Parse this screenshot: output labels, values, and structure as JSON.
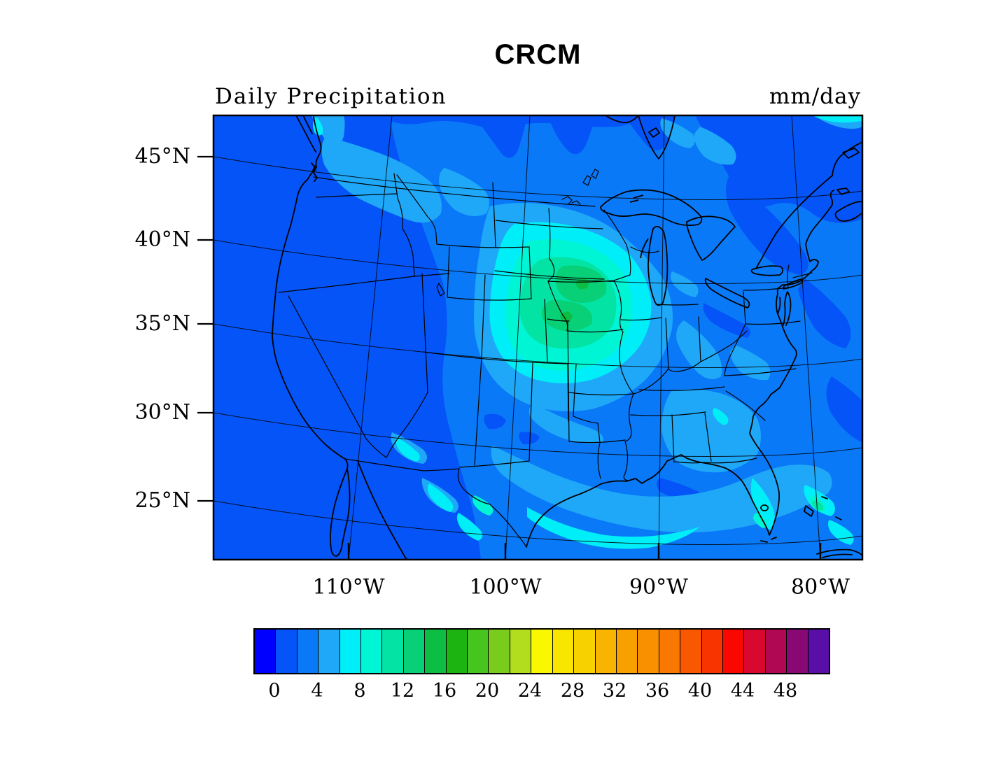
{
  "title": "CRCM",
  "subtitle": "Daily Precipitation",
  "units": "mm/day",
  "axes": {
    "lat_ticks": [
      "45°N",
      "40°N",
      "35°N",
      "30°N",
      "25°N"
    ],
    "lon_ticks": [
      "110°W",
      "100°W",
      "90°W",
      "80°W"
    ]
  },
  "colorbar": {
    "labels": [
      "0",
      "4",
      "8",
      "12",
      "16",
      "20",
      "24",
      "28",
      "32",
      "36",
      "40",
      "44",
      "48"
    ],
    "interval_mm_per_day": 2,
    "colors": [
      "#0000FE",
      "#0554F8",
      "#0A79F8",
      "#1FA8F8",
      "#00EEF8",
      "#00F5D5",
      "#03E3A3",
      "#07D077",
      "#0CBE43",
      "#1CB410",
      "#46C51E",
      "#7ACC1C",
      "#B2DC1E",
      "#FAF800",
      "#F8E600",
      "#F8D200",
      "#F8B400",
      "#F8A000",
      "#F89000",
      "#F87800",
      "#F85800",
      "#F83400",
      "#F80800",
      "#D8082E",
      "#B00852",
      "#880874",
      "#5A0EA8"
    ]
  },
  "chart_data": {
    "type": "heatmap",
    "title": "CRCM",
    "variable": "Daily Precipitation",
    "units": "mm/day",
    "region": "Continental United States with southern Canada, northern Mexico, Gulf of Mexico and western Atlantic",
    "lat_tick_values": [
      45,
      40,
      35,
      30,
      25
    ],
    "lon_tick_values": [
      -110,
      -100,
      -90,
      -80
    ],
    "contour_level_min": 0,
    "contour_level_step": 2,
    "contour_label_step": 4,
    "contour_label_range": [
      0,
      48
    ],
    "legend_position": "bottom horizontal colorbar",
    "field_summary": {
      "background_value_mm_day": "0-2 over Pacific, far west and northeast Atlantic areas",
      "dominant_value_mm_day": "2-4 over central/eastern North America",
      "maximum": {
        "region": "Upper Midwest (Minnesota / Iowa / Wisconsin / northern Missouri)",
        "approx_value_mm_day": "14-16",
        "pattern": "concentric bullseye from 4 up to ~16 mm/day"
      },
      "secondary_features": [
        "6-10 mm/day band along Texas-Louisiana Gulf Coast",
        "6-12 mm/day patches over interior Mexico / Sierra Madre",
        "6-12 mm/day spots over south Florida and the Bahamas",
        "4-6 mm/day patches over Montana, Appalachians, Georgia and Florida"
      ]
    }
  }
}
